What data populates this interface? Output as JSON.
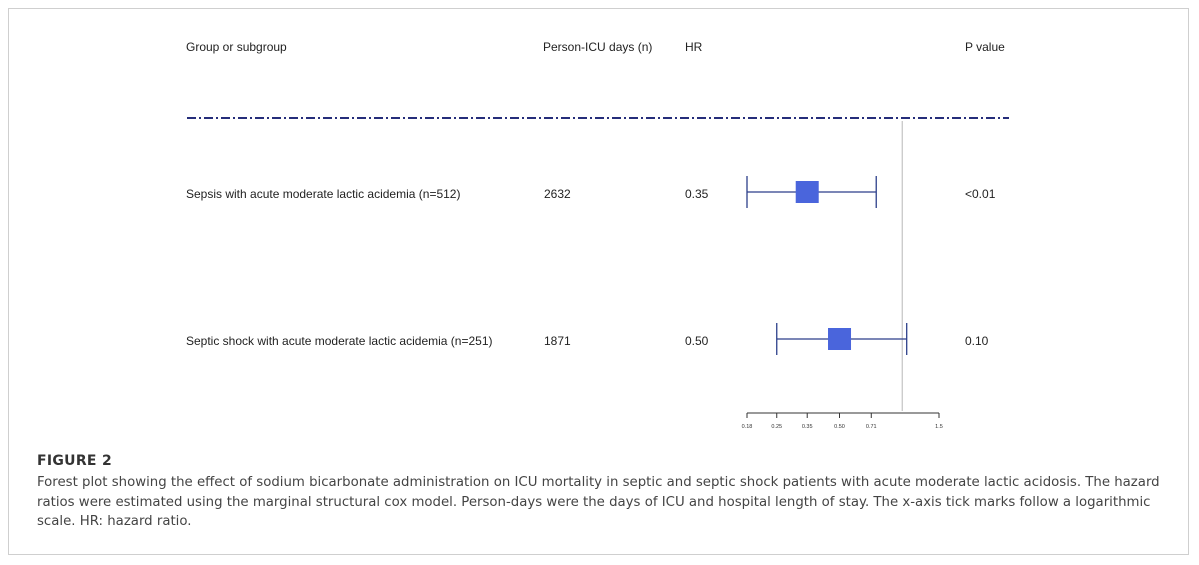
{
  "table": {
    "headers": {
      "group": "Group or subgroup",
      "days": "Person-ICU days (n)",
      "hr": "HR",
      "p": "P value"
    },
    "rows": [
      {
        "group": "Sepsis with acute moderate lactic acidemia (n=512)",
        "days": "2632",
        "hr": "0.35",
        "p": "<0.01"
      },
      {
        "group": "Septic shock with acute moderate lactic acidemia (n=251)",
        "days": "1871",
        "hr": "0.50",
        "p": "0.10"
      }
    ]
  },
  "chart_data": {
    "type": "forest",
    "x_scale": "log",
    "xlim": [
      0.18,
      1.5
    ],
    "reference_line": 1.0,
    "tick_labels": [
      "0.18",
      "0.25",
      "0.35",
      "0.50",
      "0.71",
      "1.5"
    ],
    "tick_values": [
      0.18,
      0.25,
      0.35,
      0.5,
      0.71,
      1.5
    ],
    "series": [
      {
        "label": "Sepsis with acute moderate lactic acidemia (n=512)",
        "hr": 0.35,
        "ci_low": 0.18,
        "ci_high": 0.75
      },
      {
        "label": "Septic shock with acute moderate lactic acidemia (n=251)",
        "hr": 0.5,
        "ci_low": 0.25,
        "ci_high": 1.05
      }
    ],
    "colors": {
      "box": "#4a65dc",
      "line": "#2c3f8a",
      "dash": "#252d7a",
      "ref": "#c8c8c8"
    }
  },
  "caption": {
    "title": "FIGURE 2",
    "text": "Forest plot showing the effect of sodium bicarbonate administration on ICU mortality in septic and septic shock patients with acute moderate lactic acidosis. The hazard ratios were estimated using the marginal structural cox model. Person-days were the days of ICU and hospital length of stay. The x-axis tick marks follow a logarithmic scale. HR: hazard ratio."
  }
}
